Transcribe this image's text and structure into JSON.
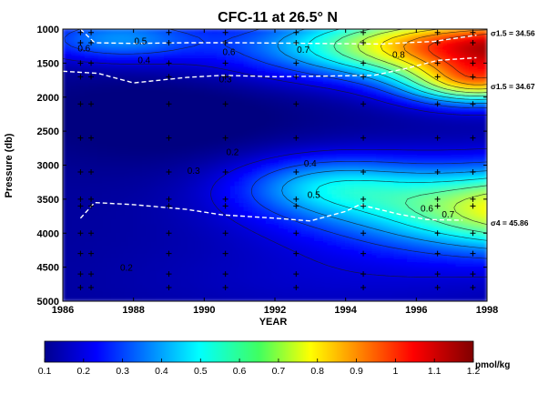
{
  "chart_data": {
    "type": "heatmap",
    "title": "CFC-11 at 26.5° N",
    "xlabel": "YEAR",
    "ylabel": "Pressure (db)",
    "xlim": [
      1986,
      1998
    ],
    "ylim": [
      5000,
      1000
    ],
    "xticks": [
      "1986",
      "1988",
      "1990",
      "1992",
      "1994",
      "1996",
      "1998"
    ],
    "yticks": [
      "1000",
      "1500",
      "2000",
      "2500",
      "3000",
      "3500",
      "4000",
      "4500",
      "5000"
    ],
    "colorbar": {
      "unit": "pmol/kg",
      "range": [
        0.1,
        1.2
      ],
      "ticks": [
        "0.1",
        "0.2",
        "0.3",
        "0.4",
        "0.5",
        "0.6",
        "0.7",
        "0.8",
        "0.9",
        "1",
        "1.1",
        "1.2"
      ]
    },
    "contour_labels": [
      {
        "text": "0.5",
        "x": 1988.2,
        "y": 1220
      },
      {
        "text": "0.6",
        "x": 1986.6,
        "y": 1330
      },
      {
        "text": "0.4",
        "x": 1988.3,
        "y": 1500
      },
      {
        "text": "0.3",
        "x": 1990.6,
        "y": 1780
      },
      {
        "text": "0.6",
        "x": 1990.7,
        "y": 1380
      },
      {
        "text": "0.7",
        "x": 1992.8,
        "y": 1350
      },
      {
        "text": "0.8",
        "x": 1995.5,
        "y": 1420
      },
      {
        "text": "0.2",
        "x": 1990.8,
        "y": 2850
      },
      {
        "text": "0.3",
        "x": 1989.7,
        "y": 3130
      },
      {
        "text": "0.4",
        "x": 1993.0,
        "y": 3020
      },
      {
        "text": "0.5",
        "x": 1993.1,
        "y": 3480
      },
      {
        "text": "0.6",
        "x": 1996.3,
        "y": 3680
      },
      {
        "text": "0.7",
        "x": 1996.9,
        "y": 3770
      },
      {
        "text": "0.2",
        "x": 1987.8,
        "y": 4550
      }
    ],
    "isopycnal_labels": [
      {
        "text": "σ1.5 = 34.56",
        "y": 1100
      },
      {
        "text": "σ1.5 = 34.67",
        "y": 1880
      },
      {
        "text": "σ4 = 45.86",
        "y": 3890
      }
    ],
    "isopycnals": [
      {
        "name": "σ1.5 = 34.56",
        "points": [
          [
            1986.5,
            1000
          ],
          [
            1986.9,
            1200
          ],
          [
            1988.0,
            1210
          ],
          [
            1989.5,
            1200
          ],
          [
            1991.0,
            1200
          ],
          [
            1993.0,
            1210
          ],
          [
            1995.0,
            1220
          ],
          [
            1996.5,
            1180
          ],
          [
            1997.7,
            1090
          ]
        ]
      },
      {
        "name": "σ1.5 = 34.67",
        "points": [
          [
            1986.0,
            1620
          ],
          [
            1987.0,
            1650
          ],
          [
            1988.0,
            1790
          ],
          [
            1989.5,
            1710
          ],
          [
            1990.5,
            1680
          ],
          [
            1992.0,
            1700
          ],
          [
            1993.5,
            1690
          ],
          [
            1994.8,
            1680
          ],
          [
            1995.7,
            1580
          ],
          [
            1996.6,
            1460
          ],
          [
            1997.7,
            1420
          ]
        ]
      },
      {
        "name": "σ4 = 45.86",
        "points": [
          [
            1986.5,
            3780
          ],
          [
            1986.9,
            3550
          ],
          [
            1988.0,
            3580
          ],
          [
            1989.5,
            3650
          ],
          [
            1990.5,
            3730
          ],
          [
            1992.0,
            3780
          ],
          [
            1993.0,
            3820
          ],
          [
            1994.0,
            3680
          ],
          [
            1994.4,
            3580
          ],
          [
            1995.5,
            3720
          ],
          [
            1996.3,
            3800
          ],
          [
            1997.3,
            3810
          ]
        ]
      }
    ],
    "station_years": [
      1986.5,
      1986.8,
      1989.0,
      1990.6,
      1992.6,
      1994.5,
      1996.6,
      1997.6
    ],
    "station_pressures": [
      1050,
      1200,
      1500,
      1700,
      2100,
      2600,
      3100,
      3500,
      3600,
      4000,
      4300,
      4600,
      4800
    ]
  }
}
